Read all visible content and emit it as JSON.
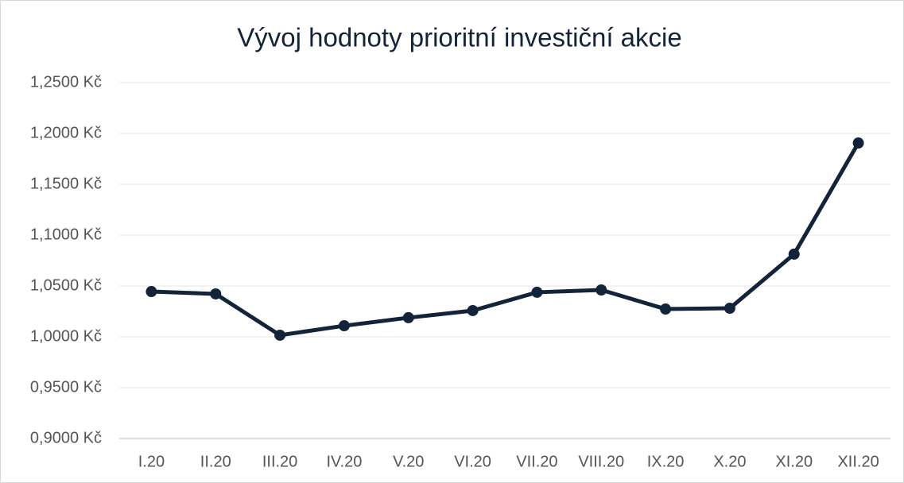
{
  "chart_data": {
    "type": "line",
    "title": "Vývoj hodnoty prioritní investiční akcie",
    "categories": [
      "I.20",
      "II.20",
      "III.20",
      "IV.20",
      "V.20",
      "VI.20",
      "VII.20",
      "VIII.20",
      "IX.20",
      "X.20",
      "XI.20",
      "XII.20"
    ],
    "series": [
      {
        "color": "#13233a",
        "values": [
          1.0445,
          1.0422,
          1.0016,
          1.0109,
          1.0188,
          1.0258,
          1.0438,
          1.0461,
          1.0273,
          1.0281,
          1.0813,
          1.1906
        ]
      }
    ],
    "ylim": [
      0.9,
      1.25
    ],
    "yticks": [
      {
        "value": 0.9,
        "label": "0,9000 Kč"
      },
      {
        "value": 0.95,
        "label": "0,9500 Kč"
      },
      {
        "value": 1.0,
        "label": "1,0000 Kč"
      },
      {
        "value": 1.05,
        "label": "1,0500 Kč"
      },
      {
        "value": 1.1,
        "label": "1,1000 Kč"
      },
      {
        "value": 1.15,
        "label": "1,1500 Kč"
      },
      {
        "value": 1.2,
        "label": "1,2000 Kč"
      },
      {
        "value": 1.25,
        "label": "1,2500 Kč"
      }
    ],
    "grid": true
  }
}
